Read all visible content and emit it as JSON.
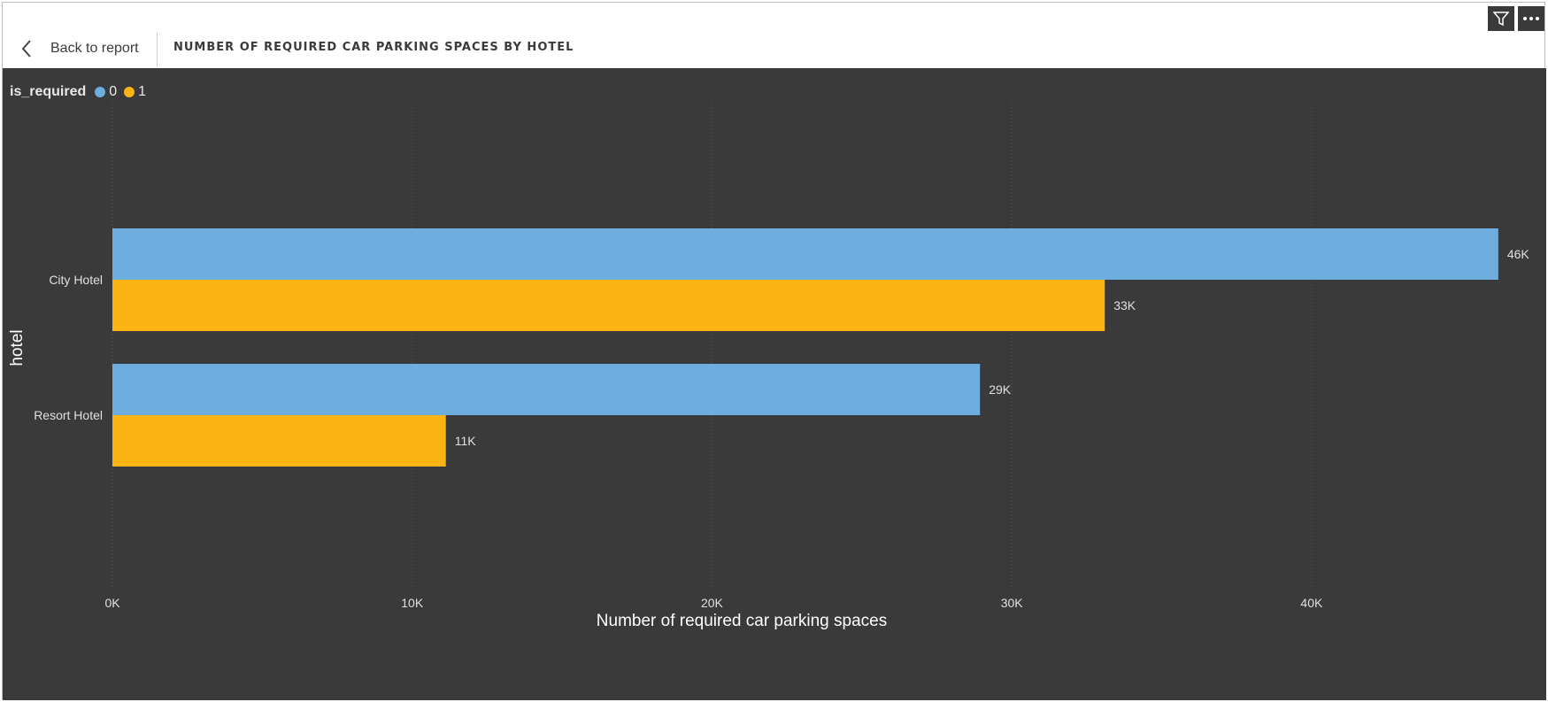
{
  "header": {
    "back_label": "Back to report",
    "title": "NUMBER OF REQUIRED CAR PARKING SPACES BY HOTEL"
  },
  "icons": {
    "back": "chevron-left-icon",
    "filter": "filter-icon",
    "more": "more-options-icon"
  },
  "colors": {
    "background": "#3a3a3a",
    "series_0": "#6eaedf",
    "series_1": "#fbb414",
    "text": "#e8e8e8"
  },
  "chart_data": {
    "type": "bar",
    "orientation": "horizontal",
    "title": "NUMBER OF REQUIRED CAR PARKING SPACES BY HOTEL",
    "xlabel": "Number of required car parking spaces",
    "ylabel": "hotel",
    "legend_title": "is_required",
    "legend_position": "top-left",
    "categories": [
      "City Hotel",
      "Resort Hotel"
    ],
    "series": [
      {
        "name": "0",
        "values": [
          46228,
          28938
        ],
        "labels": [
          "46K",
          "29K"
        ]
      },
      {
        "name": "1",
        "values": [
          33102,
          11122
        ],
        "labels": [
          "33K",
          "11K"
        ]
      }
    ],
    "xlim": [
      0,
      47000
    ],
    "xticks": [
      0,
      10000,
      20000,
      30000,
      40000
    ],
    "xtick_labels": [
      "0K",
      "10K",
      "20K",
      "30K",
      "40K"
    ],
    "grid": true
  }
}
